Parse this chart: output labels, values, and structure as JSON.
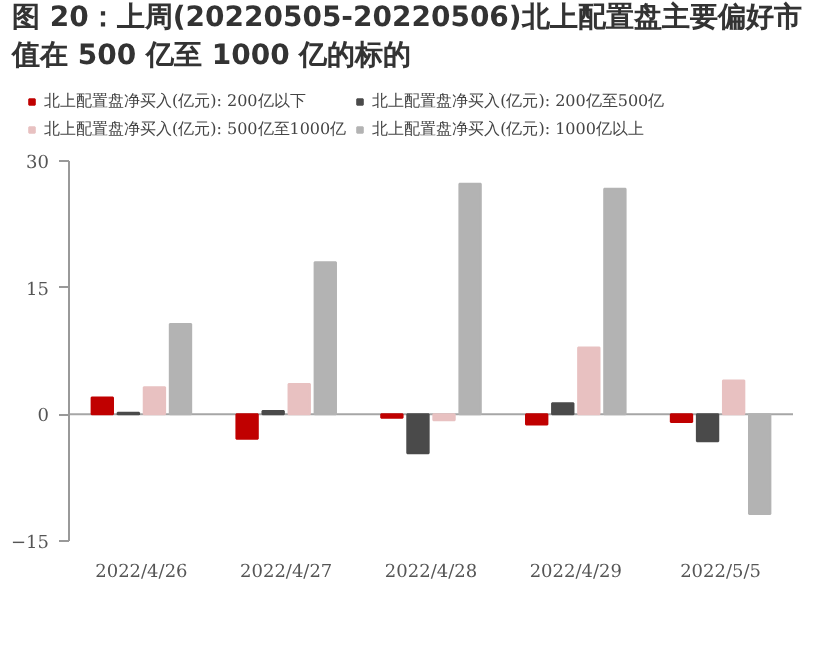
{
  "chart_data": {
    "type": "bar",
    "title": "图 20：上周(20220505-20220506)北上配置盘主要偏好市值在 500 亿至 1000 亿的标的",
    "categories": [
      "2022/4/26",
      "2022/4/27",
      "2022/4/28",
      "2022/4/29",
      "2022/5/5"
    ],
    "series": [
      {
        "name": "北上配置盘净买入(亿元): 200亿以下",
        "color": "#c00000",
        "values": [
          2.0,
          -2.9,
          -0.4,
          -1.2,
          -0.9
        ]
      },
      {
        "name": "北上配置盘净买入(亿元): 200亿至500亿",
        "color": "#4a4a4a",
        "values": [
          0.2,
          0.4,
          -4.6,
          1.3,
          -3.2
        ]
      },
      {
        "name": "北上配置盘净买入(亿元): 500亿至1000亿",
        "color": "#e8c1c1",
        "values": [
          3.2,
          3.6,
          -0.7,
          7.9,
          4.0
        ]
      },
      {
        "name": "北上配置盘净买入(亿元): 1000亿以上",
        "color": "#b3b3b3",
        "values": [
          10.7,
          18.0,
          27.3,
          26.7,
          -11.8
        ]
      }
    ],
    "ylim": [
      -15,
      30
    ],
    "yticks": [
      -15,
      0,
      15,
      30
    ],
    "ref_lines": [
      {
        "axis": "y",
        "value": 0,
        "label": null,
        "color": "#a6a6a6"
      }
    ],
    "grid": false,
    "legend": "top"
  }
}
